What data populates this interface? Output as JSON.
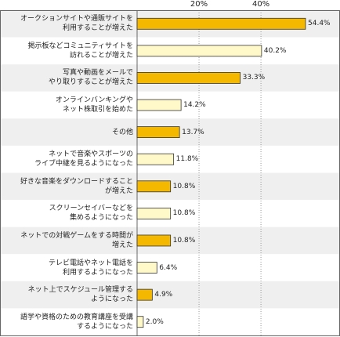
{
  "chart_data": {
    "type": "bar",
    "orientation": "horizontal",
    "xlim": [
      0,
      54.4
    ],
    "tick_values": [
      20,
      40
    ],
    "tick_labels": [
      "20%",
      "40%"
    ],
    "grid": true,
    "colors": {
      "bar_dark": "#f5b800",
      "bar_light": "#fff8c8",
      "bar_stroke": "#333333",
      "row_alt": "#efefef",
      "grid": "#999999",
      "border": "#666666"
    },
    "categories": [
      [
        "オークションサイトや通販サイトを",
        "利用することが増えた"
      ],
      [
        "掲示板などコミュニティサイトを",
        "訪れることが増えた"
      ],
      [
        "写真や動画をメールで",
        "やり取りすることが増えた"
      ],
      [
        "オンラインバンキングや",
        "ネット株取引を始めた"
      ],
      [
        "その他"
      ],
      [
        "ネットで音楽やスポーツの",
        "ライブ中継を見るようになった"
      ],
      [
        "好きな音楽をダウンロードすること",
        "が増えた"
      ],
      [
        "スクリーンセイバーなどを",
        "集めるようになった"
      ],
      [
        "ネットでの対戦ゲームをする時間が",
        "増えた"
      ],
      [
        "テレビ電話やネット電話を",
        "利用するようになった"
      ],
      [
        "ネット上でスケジュール管理する",
        "ようになった"
      ],
      [
        "語学や資格のための教育講座を受講",
        "するようになった"
      ]
    ],
    "values": [
      54.4,
      40.2,
      33.3,
      14.2,
      13.7,
      11.8,
      10.8,
      10.8,
      10.8,
      6.4,
      4.9,
      2.0
    ],
    "value_labels": [
      "54.4%",
      "40.2%",
      "33.3%",
      "14.2%",
      "13.7%",
      "11.8%",
      "10.8%",
      "10.8%",
      "10.8%",
      "6.4%",
      "4.9%",
      "2.0%"
    ],
    "bar_styles": [
      "dark",
      "light",
      "dark",
      "light",
      "dark",
      "light",
      "dark",
      "light",
      "dark",
      "light",
      "dark",
      "light"
    ]
  }
}
